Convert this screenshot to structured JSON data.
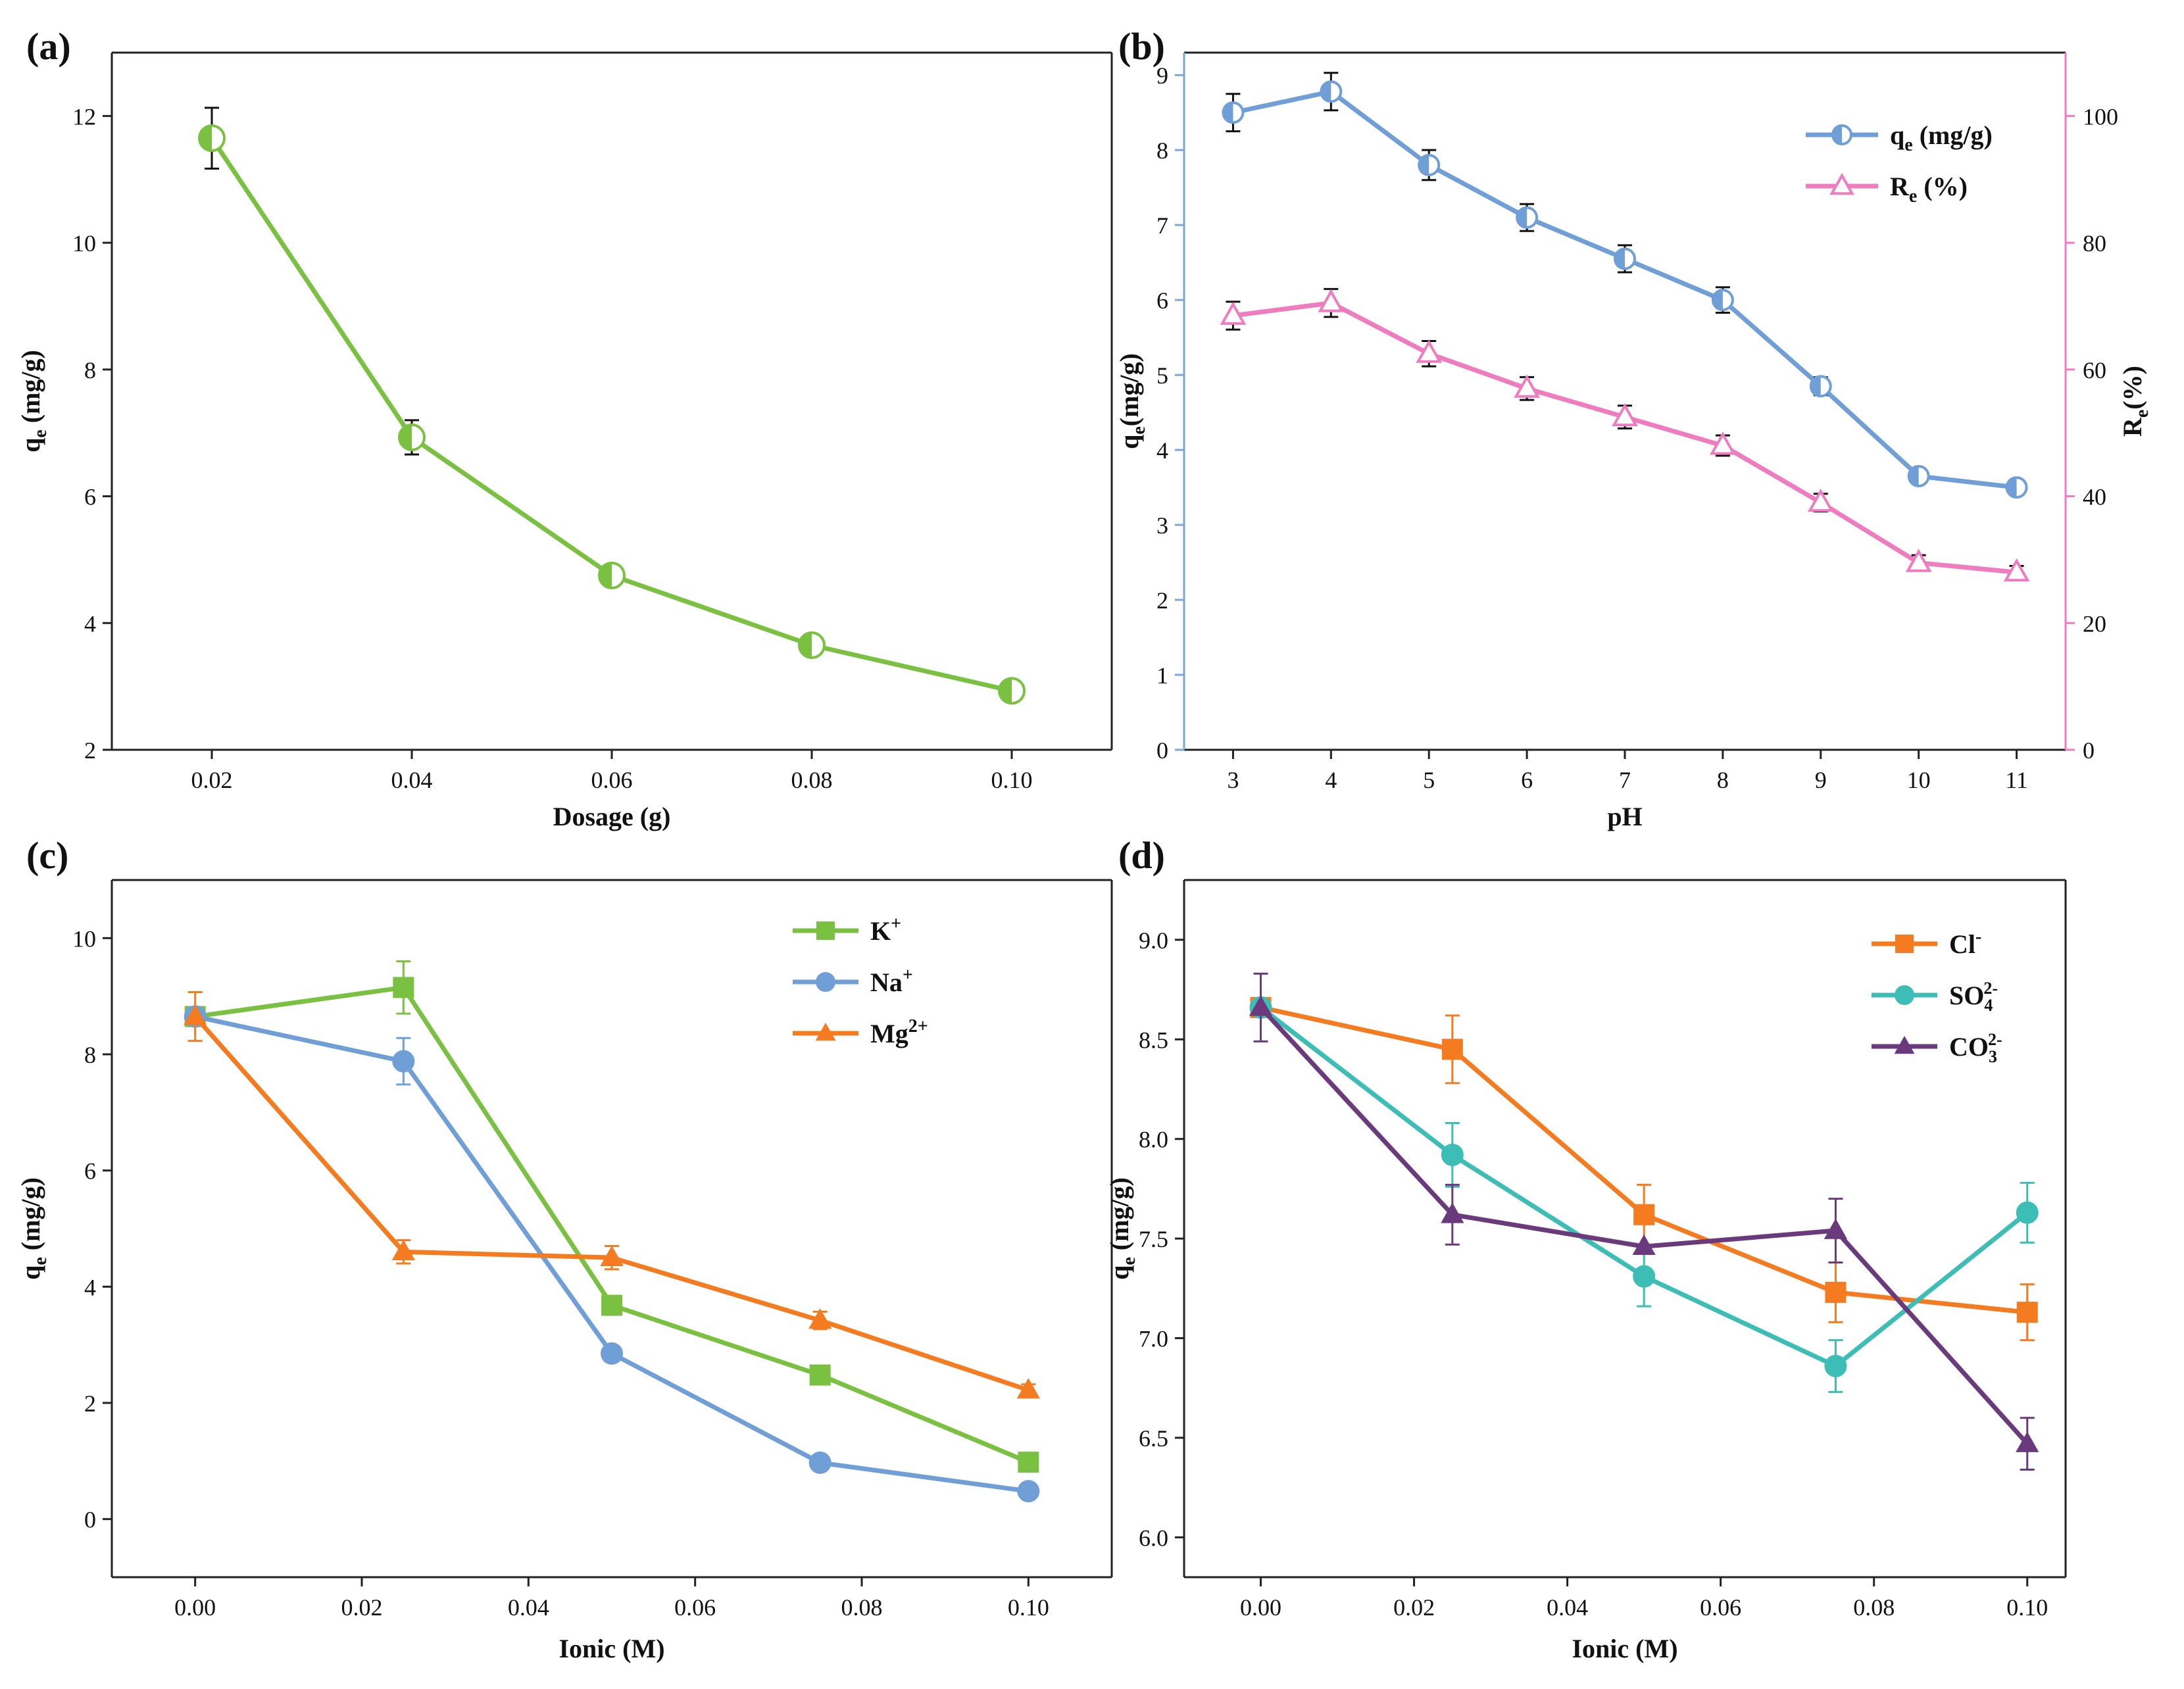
{
  "chart_data": [
    {
      "panel": "(a)",
      "type": "line",
      "x": [
        0.02,
        0.04,
        0.06,
        0.08,
        0.1
      ],
      "xticks": [
        "0.02",
        "0.04",
        "0.06",
        "0.08",
        "0.10"
      ],
      "yticks": [
        "2",
        "4",
        "6",
        "8",
        "10",
        "12"
      ],
      "xlim": [
        0.01,
        0.11
      ],
      "ylim": [
        2,
        13
      ],
      "xlabel": "Dosage (g)",
      "ylabel_main": "q",
      "ylabel_sub": "e",
      "ylabel_rest": " (mg/g)",
      "series": [
        {
          "name": "qe",
          "color": "#7ac142",
          "marker": "circle-half",
          "values": [
            11.65,
            6.93,
            4.75,
            3.65,
            2.93
          ],
          "errors": [
            0.48,
            0.27,
            0.15,
            0.13,
            0.12
          ]
        }
      ]
    },
    {
      "panel": "(b)",
      "type": "line",
      "x": [
        3,
        4,
        5,
        6,
        7,
        8,
        9,
        10,
        11
      ],
      "xticks": [
        "3",
        "4",
        "5",
        "6",
        "7",
        "8",
        "9",
        "10",
        "11"
      ],
      "yticks": [
        "0",
        "1",
        "2",
        "3",
        "4",
        "5",
        "6",
        "7",
        "8",
        "9"
      ],
      "yticks_right": [
        "0",
        "20",
        "40",
        "60",
        "80",
        "100"
      ],
      "xlim": [
        2.5,
        11.5
      ],
      "ylim": [
        0,
        9.3
      ],
      "ylim_right": [
        0,
        110
      ],
      "xlabel": "pH",
      "ylabel_main": "q",
      "ylabel_sub": "e",
      "ylabel_rest": "(mg/g)",
      "ylabel_right_main": "R",
      "ylabel_right_sub": "e",
      "ylabel_right_rest": "(%)",
      "left_axis_color": "#7aa7d8",
      "right_axis_color": "#f07cc0",
      "series": [
        {
          "name": "qe (mg/g)",
          "legend_main": "q",
          "legend_sub": "e",
          "legend_rest": " (mg/g)",
          "color": "#6f9fd6",
          "marker": "circle-half",
          "axis": "left",
          "values": [
            8.5,
            8.78,
            7.8,
            7.1,
            6.55,
            6.0,
            4.85,
            3.65,
            3.5
          ],
          "errors": [
            0.25,
            0.25,
            0.2,
            0.18,
            0.18,
            0.17,
            0.12,
            0.1,
            0.08
          ]
        },
        {
          "name": "Re (%)",
          "legend_main": "R",
          "legend_sub": "e",
          "legend_rest": " (%)",
          "color": "#f07cc0",
          "marker": "triangle-open",
          "axis": "right",
          "values": [
            68.5,
            70.5,
            62.5,
            57.0,
            52.5,
            48.0,
            39.0,
            29.5,
            28.0
          ],
          "errors": [
            2.2,
            2.2,
            2.0,
            1.8,
            1.8,
            1.6,
            1.4,
            1.2,
            1.0
          ]
        }
      ]
    },
    {
      "panel": "(c)",
      "type": "line",
      "x": [
        0.0,
        0.025,
        0.05,
        0.075,
        0.1
      ],
      "xticks": [
        "0.00",
        "0.02",
        "0.04",
        "0.06",
        "0.08",
        "0.10"
      ],
      "xtick_values": [
        0.0,
        0.02,
        0.04,
        0.06,
        0.08,
        0.1
      ],
      "yticks": [
        "0",
        "2",
        "4",
        "6",
        "8",
        "10"
      ],
      "xlim": [
        -0.01,
        0.11
      ],
      "ylim": [
        -1,
        11
      ],
      "xlabel": "Ionic (M)",
      "ylabel_main": "q",
      "ylabel_sub": "e",
      "ylabel_rest": " (mg/g)",
      "series": [
        {
          "name": "K+",
          "legend_main": "K",
          "legend_sup": "+",
          "color": "#7ac142",
          "marker": "square",
          "values": [
            8.65,
            9.15,
            3.68,
            2.48,
            0.98
          ],
          "errors": [
            0.15,
            0.45,
            0.1,
            0.1,
            0.08
          ]
        },
        {
          "name": "Na+",
          "legend_main": "Na",
          "legend_sup": "+",
          "color": "#6f9fd6",
          "marker": "circle",
          "values": [
            8.65,
            7.88,
            2.85,
            0.97,
            0.48
          ],
          "errors": [
            0.15,
            0.4,
            0.1,
            0.1,
            0.08
          ]
        },
        {
          "name": "Mg2+",
          "legend_main": "Mg",
          "legend_sup": "2+",
          "color": "#f47b20",
          "marker": "triangle",
          "values": [
            8.65,
            4.6,
            4.5,
            3.42,
            2.22
          ],
          "errors": [
            0.42,
            0.2,
            0.2,
            0.15,
            0.1
          ]
        }
      ]
    },
    {
      "panel": "(d)",
      "type": "line",
      "x": [
        0.0,
        0.025,
        0.05,
        0.075,
        0.1
      ],
      "xticks": [
        "0.00",
        "0.02",
        "0.04",
        "0.06",
        "0.08",
        "0.10"
      ],
      "xtick_values": [
        0.0,
        0.02,
        0.04,
        0.06,
        0.08,
        0.1
      ],
      "yticks": [
        "6.0",
        "6.5",
        "7.0",
        "7.5",
        "8.0",
        "8.5",
        "9.0"
      ],
      "ytick_values": [
        6.0,
        6.5,
        7.0,
        7.5,
        8.0,
        8.5,
        9.0
      ],
      "xlim": [
        -0.01,
        0.105
      ],
      "ylim": [
        5.8,
        9.3
      ],
      "xlabel": "Ionic (M)",
      "ylabel_main": "q",
      "ylabel_sub": "e",
      "ylabel_rest": " (mg/g)",
      "series": [
        {
          "name": "Cl-",
          "legend_main": "Cl",
          "legend_sup": "-",
          "legend_sub": "",
          "color": "#f47b20",
          "marker": "square",
          "values": [
            8.66,
            8.45,
            7.62,
            7.23,
            7.13
          ],
          "errors": [
            0.0,
            0.17,
            0.15,
            0.15,
            0.14
          ]
        },
        {
          "name": "SO4 2-",
          "legend_main": "SO",
          "legend_sup": "2-",
          "legend_sub": "4",
          "color": "#3cbdb5",
          "marker": "circle",
          "values": [
            8.66,
            7.92,
            7.31,
            6.86,
            7.63
          ],
          "errors": [
            0.0,
            0.16,
            0.15,
            0.13,
            0.15
          ]
        },
        {
          "name": "CO3 2-",
          "legend_main": "CO",
          "legend_sup": "2-",
          "legend_sub": "3",
          "color": "#6b3a7d",
          "marker": "triangle",
          "values": [
            8.66,
            7.62,
            7.46,
            7.54,
            6.47
          ],
          "errors": [
            0.17,
            0.15,
            0.0,
            0.16,
            0.13
          ]
        }
      ]
    }
  ]
}
